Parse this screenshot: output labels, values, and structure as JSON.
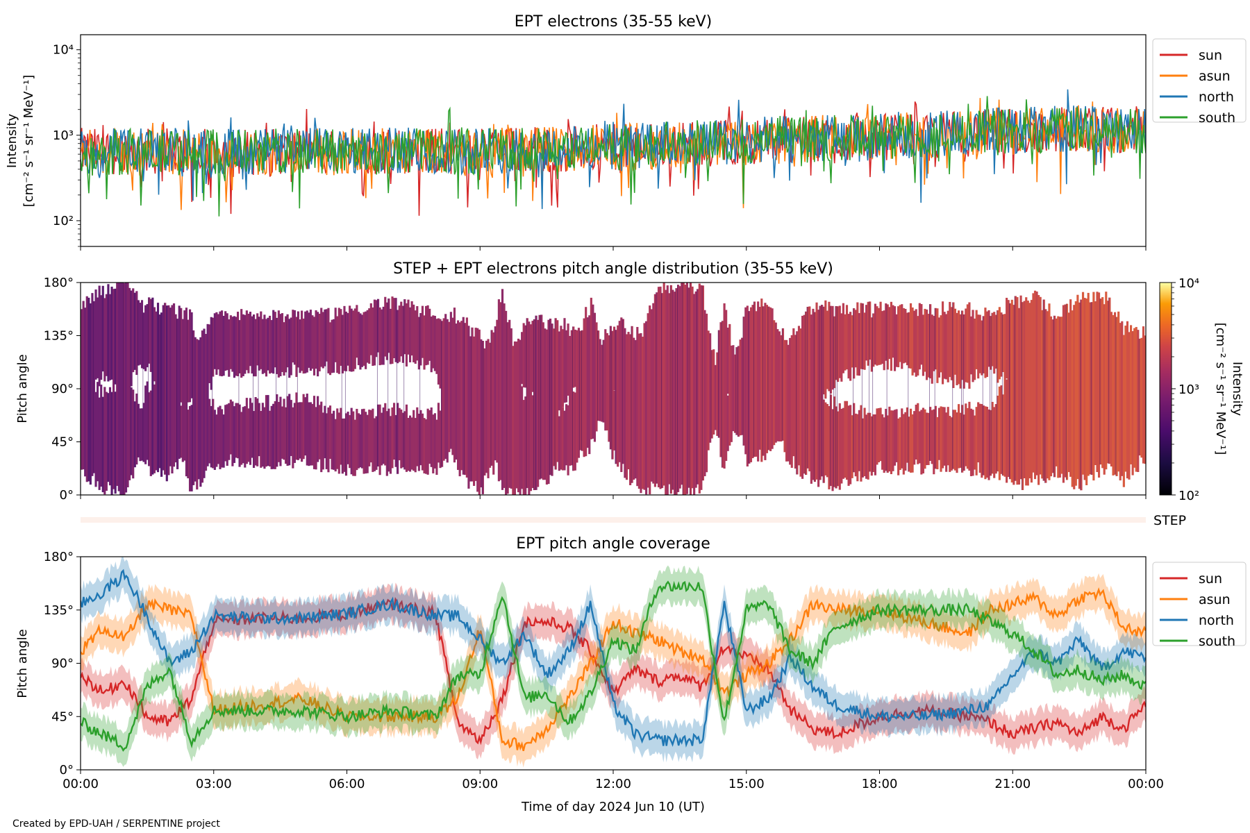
{
  "chart_data": [
    {
      "type": "line",
      "title": "EPT electrons (35-55 keV)",
      "ylabel_line1": "Intensity",
      "ylabel_line2": "[cm⁻² s⁻¹ sr⁻¹ MeV⁻¹]",
      "yscale": "log",
      "ylim": [
        50,
        15000
      ],
      "yticks": [
        {
          "value": 100,
          "label": "10²"
        },
        {
          "value": 1000,
          "label": "10³"
        },
        {
          "value": 10000,
          "label": "10⁴"
        }
      ],
      "xlim_hours": [
        0,
        24
      ],
      "legend_position": "right",
      "legend": [
        "sun",
        "asun",
        "north",
        "south"
      ],
      "series": [
        {
          "name": "sun",
          "color": "#d62728",
          "x_hours": [
            0,
            3,
            6,
            9,
            12,
            15,
            18,
            21,
            22.5,
            24
          ],
          "values": [
            650,
            640,
            650,
            660,
            720,
            850,
            950,
            1100,
            1200,
            1150
          ]
        },
        {
          "name": "asun",
          "color": "#ff7f0e",
          "x_hours": [
            0,
            3,
            6,
            9,
            12,
            15,
            18,
            21,
            22.5,
            24
          ],
          "values": [
            630,
            620,
            640,
            650,
            720,
            840,
            950,
            1100,
            1150,
            1100
          ]
        },
        {
          "name": "north",
          "color": "#1f77b4",
          "x_hours": [
            0,
            3,
            6,
            9,
            12,
            15,
            18,
            21,
            22.5,
            24
          ],
          "values": [
            660,
            650,
            660,
            660,
            730,
            860,
            970,
            1150,
            1200,
            1150
          ]
        },
        {
          "name": "south",
          "color": "#2ca02c",
          "x_hours": [
            0,
            3,
            6,
            9,
            12,
            15,
            18,
            21,
            22.5,
            24
          ],
          "values": [
            640,
            630,
            650,
            660,
            720,
            850,
            950,
            1100,
            1150,
            1120
          ]
        }
      ]
    },
    {
      "type": "heatmap",
      "title": "STEP + EPT electrons pitch angle distribution (35-55 keV)",
      "ylabel": "Pitch angle",
      "ylim": [
        0,
        180
      ],
      "yticks": [
        "0°",
        "45°",
        "90°",
        "135°",
        "180°"
      ],
      "xlim_hours": [
        0,
        24
      ],
      "colorbar": {
        "scale": "log",
        "range": [
          100,
          10000
        ],
        "colormap": "inferno",
        "ticks": [
          "10²",
          "10³",
          "10⁴"
        ],
        "label_line1": "Intensity",
        "label_line2": "[cm⁻² s⁻¹ sr⁻¹ MeV⁻¹]"
      }
    },
    {
      "type": "bar",
      "label": "STEP"
    },
    {
      "type": "line",
      "title": "EPT pitch angle coverage",
      "ylabel": "Pitch angle",
      "ylim": [
        0,
        180
      ],
      "yticks": [
        "0°",
        "45°",
        "90°",
        "135°",
        "180°"
      ],
      "xlabel": "Time of day 2024 Jun 10 (UT)",
      "xticks": [
        "00:00",
        "03:00",
        "06:00",
        "09:00",
        "12:00",
        "15:00",
        "18:00",
        "21:00",
        "00:00"
      ],
      "xlim_hours": [
        0,
        24
      ],
      "legend_position": "right",
      "legend": [
        "sun",
        "asun",
        "north",
        "south"
      ],
      "series": [
        {
          "name": "sun",
          "color": "#d62728",
          "x_hours": [
            0,
            0.5,
            1,
            1.5,
            2,
            2.5,
            3,
            4,
            5,
            6,
            7,
            8,
            8.5,
            9,
            9.5,
            10,
            10.5,
            11,
            11.5,
            12,
            12.5,
            13,
            13.5,
            14,
            14.5,
            15,
            15.5,
            16,
            16.5,
            17,
            18,
            19,
            20,
            20.5,
            21,
            21.5,
            22,
            22.5,
            23,
            23.5,
            24
          ],
          "values": [
            80,
            65,
            75,
            45,
            40,
            60,
            125,
            128,
            128,
            132,
            140,
            132,
            40,
            25,
            60,
            125,
            125,
            120,
            100,
            65,
            85,
            75,
            80,
            70,
            105,
            95,
            85,
            50,
            35,
            30,
            45,
            50,
            45,
            40,
            30,
            35,
            40,
            30,
            45,
            35,
            55
          ]
        },
        {
          "name": "asun",
          "color": "#ff7f0e",
          "x_hours": [
            0,
            0.5,
            1,
            1.5,
            2,
            2.5,
            3,
            4,
            5,
            6,
            7,
            8,
            8.5,
            9,
            9.5,
            10,
            10.5,
            11,
            11.5,
            12,
            12.5,
            13,
            13.5,
            14,
            14.5,
            15,
            15.5,
            16,
            16.5,
            17,
            18,
            19,
            20,
            20.5,
            21,
            21.5,
            22,
            22.5,
            23,
            23.5,
            24
          ],
          "values": [
            100,
            120,
            110,
            140,
            135,
            130,
            50,
            55,
            60,
            45,
            45,
            45,
            60,
            120,
            25,
            20,
            35,
            60,
            90,
            125,
            115,
            110,
            100,
            95,
            65,
            80,
            90,
            110,
            140,
            135,
            135,
            125,
            115,
            135,
            140,
            145,
            130,
            145,
            150,
            120,
            115
          ]
        },
        {
          "name": "north",
          "color": "#1f77b4",
          "x_hours": [
            0,
            0.5,
            1,
            1.5,
            2,
            2.5,
            3,
            4,
            5,
            6,
            7,
            8,
            8.5,
            9,
            9.5,
            10,
            10.5,
            11,
            11.5,
            12,
            12.5,
            13,
            13.5,
            14,
            14.5,
            15,
            15.5,
            16,
            16.5,
            17,
            18,
            19,
            20,
            20.5,
            21,
            21.5,
            22,
            22.5,
            23,
            23.5,
            24
          ],
          "values": [
            140,
            150,
            165,
            130,
            90,
            100,
            130,
            128,
            128,
            132,
            140,
            130,
            130,
            110,
            90,
            115,
            80,
            100,
            140,
            55,
            30,
            25,
            25,
            25,
            140,
            50,
            60,
            95,
            70,
            55,
            45,
            45,
            50,
            55,
            80,
            100,
            90,
            110,
            85,
            100,
            95
          ]
        },
        {
          "name": "south",
          "color": "#2ca02c",
          "x_hours": [
            0,
            0.5,
            1,
            1.5,
            2,
            2.5,
            3,
            4,
            5,
            6,
            7,
            8,
            8.5,
            9,
            9.5,
            10,
            10.5,
            11,
            11.5,
            12,
            12.5,
            13,
            13.5,
            14,
            14.5,
            15,
            15.5,
            16,
            16.5,
            17,
            18,
            19,
            20,
            20.5,
            21,
            21.5,
            22,
            22.5,
            23,
            23.5,
            24
          ],
          "values": [
            40,
            30,
            20,
            70,
            85,
            25,
            50,
            50,
            50,
            45,
            50,
            45,
            80,
            80,
            150,
            60,
            65,
            40,
            65,
            110,
            100,
            155,
            155,
            155,
            40,
            135,
            140,
            100,
            90,
            120,
            135,
            135,
            135,
            125,
            115,
            100,
            80,
            85,
            75,
            80,
            70
          ]
        }
      ]
    }
  ],
  "credit": "Created by EPD-UAH / SERPENTINE project"
}
